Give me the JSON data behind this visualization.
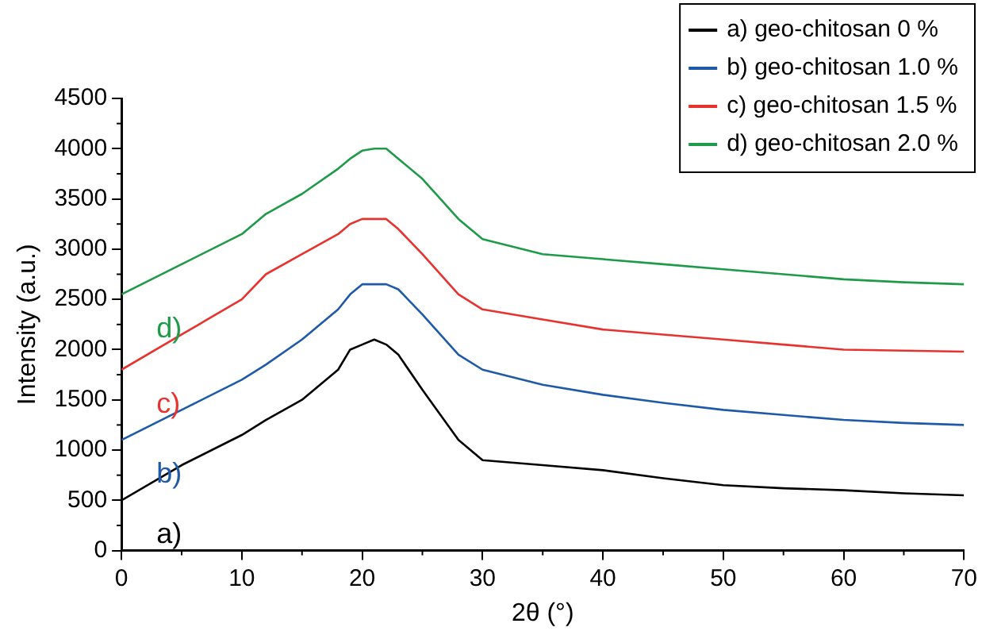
{
  "chart_data": {
    "type": "line",
    "xlabel": "2θ (°)",
    "ylabel": "Intensity (a.u.)",
    "xlim": [
      0,
      70
    ],
    "xticks": [
      0,
      10,
      20,
      30,
      40,
      50,
      60,
      70
    ],
    "ylim": [
      0,
      4500
    ],
    "yticks": [
      0,
      500,
      1000,
      1500,
      2000,
      2500,
      3000,
      3500,
      4000,
      4500
    ],
    "grid": false,
    "legend": "top right",
    "marker": "none",
    "line_style": "solid",
    "x": [
      0,
      5,
      10,
      12,
      15,
      18,
      19,
      20,
      21,
      22,
      23,
      25,
      28,
      30,
      35,
      40,
      45,
      50,
      55,
      60,
      65,
      70
    ],
    "series": [
      {
        "name": "a) geo-chitosan 0 %",
        "color": "#000000",
        "values": [
          500,
          850,
          1150,
          1300,
          1500,
          1800,
          2000,
          2050,
          2100,
          2050,
          1950,
          1600,
          1100,
          900,
          850,
          800,
          720,
          650,
          620,
          600,
          570,
          550
        ]
      },
      {
        "name": "b) geo-chitosan 1.0 %",
        "color": "#1f5aa8",
        "values": [
          1100,
          1400,
          1700,
          1850,
          2100,
          2400,
          2550,
          2650,
          2650,
          2650,
          2600,
          2350,
          1950,
          1800,
          1650,
          1550,
          1470,
          1400,
          1350,
          1300,
          1270,
          1250
        ]
      },
      {
        "name": "c) geo-chitosan 1.5 %",
        "color": "#e8322e",
        "values": [
          1800,
          2150,
          2500,
          2750,
          2950,
          3150,
          3250,
          3300,
          3300,
          3300,
          3200,
          2950,
          2550,
          2400,
          2300,
          2200,
          2150,
          2100,
          2050,
          2000,
          1990,
          1980
        ]
      },
      {
        "name": "d) geo-chitosan 2.0 %",
        "color": "#1e9a48",
        "values": [
          2550,
          2850,
          3150,
          3350,
          3550,
          3800,
          3900,
          3980,
          4000,
          4000,
          3900,
          3700,
          3300,
          3100,
          2950,
          2900,
          2850,
          2800,
          2750,
          2700,
          2670,
          2650
        ]
      }
    ],
    "annotations": [
      "a)",
      "b)",
      "c)",
      "d)"
    ]
  }
}
